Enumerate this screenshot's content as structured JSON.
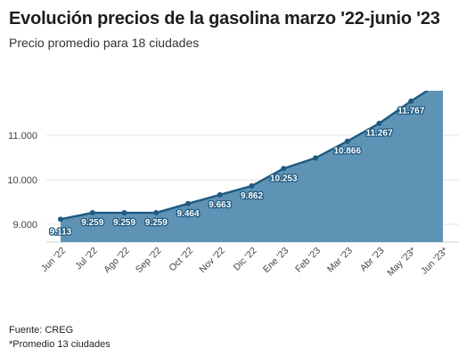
{
  "chart_data": {
    "type": "area",
    "title": "Evolución precios de la gasolina marzo '22-junio '23",
    "subtitle": "Precio promedio para 18 ciudades",
    "categories": [
      "Jun '22",
      "Jul '22",
      "Ago '22",
      "Sep '22",
      "Oct '22",
      "Nov '22",
      "Dic '22",
      "Ene '23",
      "Feb '23",
      "Mar '23",
      "Abr '23",
      "May '23*",
      "Jun '23*"
    ],
    "series": [
      {
        "values": [
          9113,
          9259,
          9259,
          9259,
          9464,
          9663,
          9862,
          10253,
          10490,
          10866,
          11267,
          11767,
          12230
        ],
        "labels": [
          "9.113",
          "9.259",
          "9.259",
          "9.259",
          "9.464",
          "9.663",
          "9.862",
          "10.253",
          "",
          "10.866",
          "11.267",
          "11.767",
          ""
        ]
      }
    ],
    "y_ticks": [
      9000,
      10000,
      11000
    ],
    "y_tick_labels": [
      "9.000",
      "10.000",
      "11.000"
    ],
    "ylim": [
      8600,
      12000
    ],
    "grid": true,
    "legend": "none",
    "colors": {
      "area": "#5f93b6",
      "line": "#1f5a80",
      "grid": "#e6e6e6"
    }
  },
  "footer": {
    "source": "Fuente: CREG",
    "note": "*Promedio 13 ciudades"
  }
}
